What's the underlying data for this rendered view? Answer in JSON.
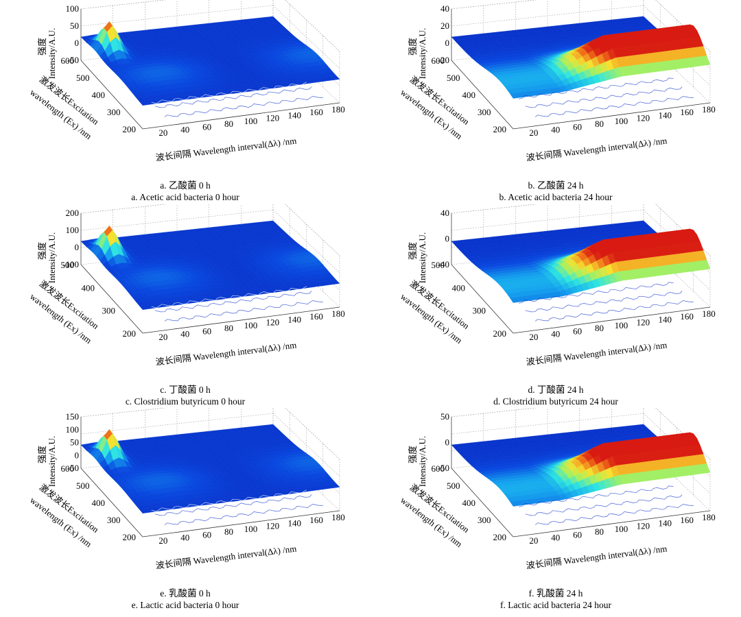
{
  "labels": {
    "zlabel_cn": "强度",
    "zlabel_en": "Intensity/A.U.",
    "ylabel_cn": "激发波长Excitation",
    "ylabel_en": "wavelength (Ex) /nm",
    "xlabel_cn": "波长间隔",
    "xlabel_en": "Wavelength interval(Δλ) /nm"
  },
  "colors": {
    "surface_low": "#0a2bd8",
    "surface_mid": "#1fd0f0",
    "surface_high": "#e8341a",
    "grid": "#9a9a9a"
  },
  "chart_data": [
    {
      "type": "surface3d",
      "caption_cn": "a.  乙酸菌 0 h",
      "caption_en": "a. Acetic acid bacteria 0 hour",
      "x_ticks": [
        "20",
        "40",
        "60",
        "80",
        "100",
        "120",
        "140",
        "160",
        "180"
      ],
      "y_ticks": [
        "200",
        "300",
        "400",
        "500",
        "600"
      ],
      "z_ticks": [
        "100",
        "50",
        "0",
        "-50"
      ],
      "xlim": [
        0,
        180
      ],
      "ylim": [
        200,
        600
      ],
      "zlim": [
        -50,
        100
      ],
      "profile": "peak_low",
      "peak_intensity": 100
    },
    {
      "type": "surface3d",
      "caption_cn": "b.  乙酸菌 24 h",
      "caption_en": "b. Acetic acid bacteria 24 hour",
      "x_ticks": [
        "20",
        "40",
        "60",
        "80",
        "100",
        "120",
        "140",
        "160",
        "180"
      ],
      "y_ticks": [
        "200",
        "300",
        "400",
        "500",
        "600"
      ],
      "z_ticks": [
        "40",
        "20",
        "0",
        "-20"
      ],
      "xlim": [
        0,
        180
      ],
      "ylim": [
        200,
        600
      ],
      "zlim": [
        -20,
        40
      ],
      "profile": "ridge_high",
      "peak_intensity": 40
    },
    {
      "type": "surface3d",
      "caption_cn": "c.  丁酸菌 0 h",
      "caption_en": "c. Clostridium butyricum 0 hour",
      "x_ticks": [
        "20",
        "40",
        "60",
        "80",
        "100",
        "120",
        "140",
        "160",
        "180"
      ],
      "y_ticks": [
        "200",
        "300",
        "400",
        "500"
      ],
      "z_ticks": [
        "200",
        "100",
        "0",
        "-100"
      ],
      "xlim": [
        0,
        180
      ],
      "ylim": [
        200,
        500
      ],
      "zlim": [
        -100,
        200
      ],
      "profile": "peak_low",
      "peak_intensity": 200
    },
    {
      "type": "surface3d",
      "caption_cn": "d.  丁酸菌 24 h",
      "caption_en": "d. Clostridium butyricum 24 hour",
      "x_ticks": [
        "20",
        "40",
        "60",
        "80",
        "100",
        "120",
        "140",
        "160",
        "180"
      ],
      "y_ticks": [
        "200",
        "300",
        "400",
        "500"
      ],
      "z_ticks": [
        "40",
        "0",
        "-40"
      ],
      "xlim": [
        0,
        180
      ],
      "ylim": [
        200,
        500
      ],
      "zlim": [
        -40,
        40
      ],
      "profile": "ridge_high",
      "peak_intensity": 40
    },
    {
      "type": "surface3d",
      "caption_cn": "e.  乳酸菌 0 h",
      "caption_en": "e. Lactic acid bacteria 0 hour",
      "x_ticks": [
        "20",
        "40",
        "60",
        "80",
        "100",
        "120",
        "140",
        "160",
        "180"
      ],
      "y_ticks": [
        "200",
        "300",
        "400",
        "500",
        "600"
      ],
      "z_ticks": [
        "150",
        "100",
        "50",
        "0",
        "-50"
      ],
      "xlim": [
        0,
        180
      ],
      "ylim": [
        200,
        600
      ],
      "zlim": [
        -50,
        150
      ],
      "profile": "peak_low",
      "peak_intensity": 150
    },
    {
      "type": "surface3d",
      "caption_cn": "f.  乳酸菌 24 h",
      "caption_en": "f. Lactic acid bacteria 24 hour",
      "x_ticks": [
        "20",
        "40",
        "60",
        "80",
        "100",
        "120",
        "140",
        "160",
        "180"
      ],
      "y_ticks": [
        "200",
        "300",
        "400",
        "500",
        "600"
      ],
      "z_ticks": [
        "50",
        "0",
        "-50"
      ],
      "xlim": [
        0,
        180
      ],
      "ylim": [
        200,
        600
      ],
      "zlim": [
        -50,
        50
      ],
      "profile": "ridge_high",
      "peak_intensity": 50
    }
  ]
}
